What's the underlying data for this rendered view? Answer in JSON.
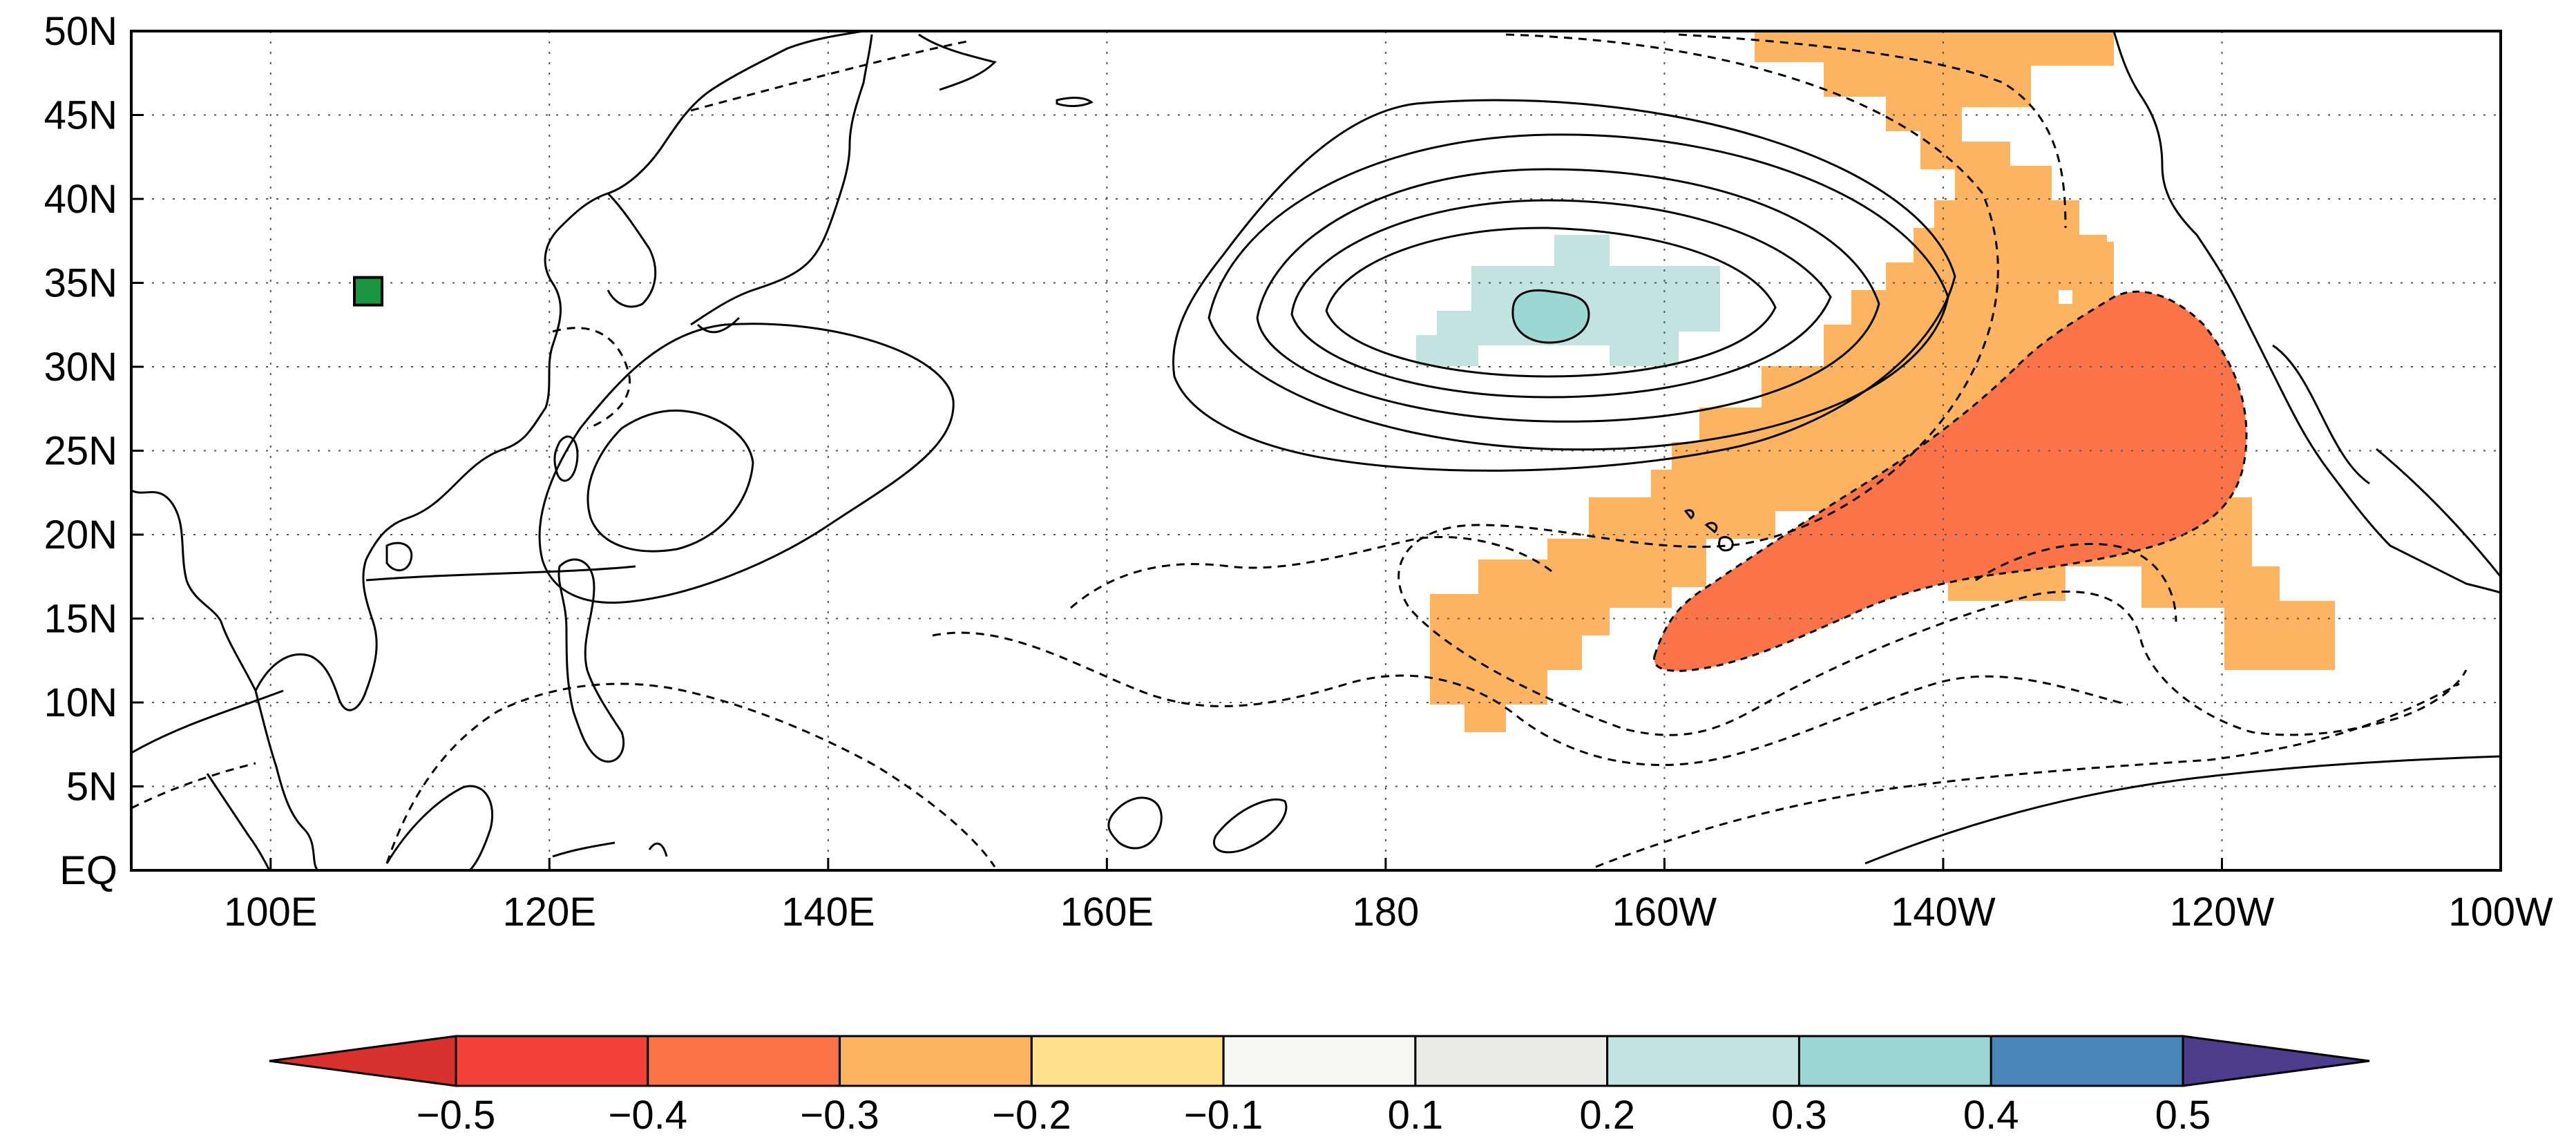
{
  "map": {
    "y_ticks": [
      "EQ",
      "5N",
      "10N",
      "15N",
      "20N",
      "25N",
      "30N",
      "35N",
      "40N",
      "45N",
      "50N"
    ],
    "x_ticks": [
      "100E",
      "120E",
      "140E",
      "160E",
      "180",
      "160W",
      "140W",
      "120W",
      "100W"
    ],
    "lon_range": [
      90,
      260
    ],
    "lat_range": [
      0,
      50
    ],
    "grid": "dotted",
    "marker": {
      "label": "",
      "lon": 107,
      "lat": 34.5,
      "color": "#1a9641",
      "shape": "square"
    },
    "colors": {
      "shade_warm_light": "#fdb462",
      "shade_warm_dark": "#fb7348",
      "shade_cool_light": "#c2e3e0",
      "shade_cool_dark": "#9bd8d4"
    }
  },
  "colorbar": {
    "labels": [
      "-0.5",
      "-0.4",
      "-0.3",
      "-0.2",
      "-0.1",
      "0.1",
      "0.2",
      "0.3",
      "0.4",
      "0.5"
    ],
    "colors": [
      "#d7302d",
      "#f3423a",
      "#fb7348",
      "#fdb462",
      "#fee08b",
      "#f7f7f2",
      "#eaece8",
      "#c2e3e0",
      "#9bd8d4",
      "#4b86bb",
      "#4d3b8c"
    ]
  }
}
